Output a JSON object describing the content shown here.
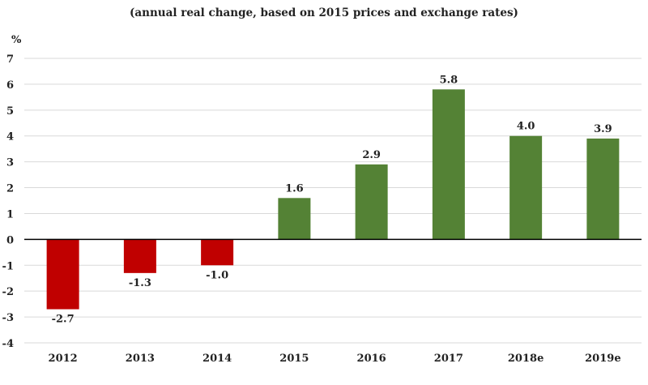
{
  "chart_data": {
    "type": "bar",
    "title": "",
    "subtitle": "(annual real change, based on 2015 prices and exchange rates)",
    "ylabel": "%",
    "categories": [
      "2012",
      "2013",
      "2014",
      "2015",
      "2016",
      "2017",
      "2018e",
      "2019e"
    ],
    "values": [
      -2.7,
      -1.3,
      -1.0,
      1.6,
      2.9,
      5.8,
      4.0,
      3.9
    ],
    "value_labels": [
      "-2.7",
      "-1.3",
      "-1.0",
      "1.6",
      "2.9",
      "5.8",
      "4.0",
      "3.9"
    ],
    "ylim": [
      -4,
      7
    ],
    "yticks": [
      7,
      6,
      5,
      4,
      3,
      2,
      1,
      0,
      -1,
      -2,
      -3,
      -4
    ],
    "grid": true,
    "legend": "none",
    "colors": {
      "positive": "#548235",
      "negative": "#c00000",
      "grid": "#d9d9d9",
      "axis": "#000000"
    }
  }
}
